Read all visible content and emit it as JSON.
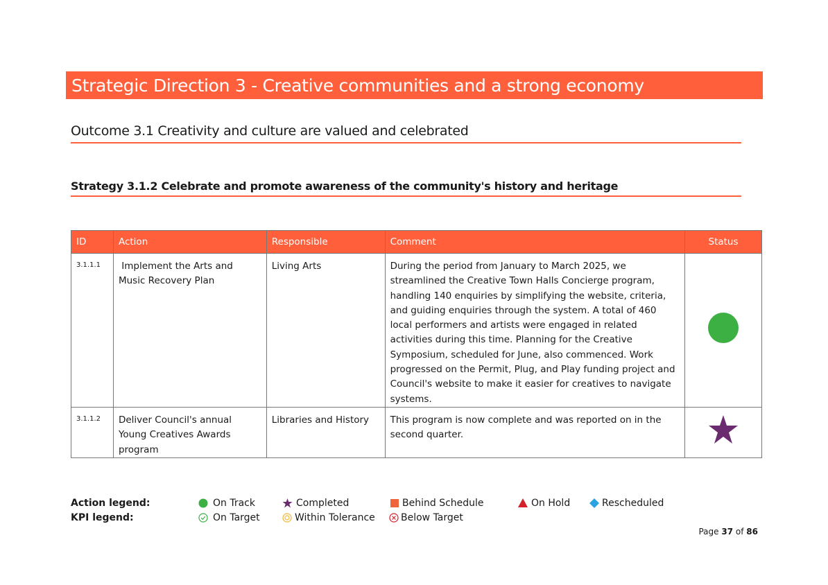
{
  "header": {
    "title": "Strategic Direction 3 - Creative communities and a strong economy"
  },
  "outcome": {
    "title": "Outcome 3.1 Creativity and culture are valued and celebrated"
  },
  "strategy": {
    "title": "Strategy 3.1.2 Celebrate and promote awareness of the community's history and heritage"
  },
  "table": {
    "columns": [
      "ID",
      "Action",
      "Responsible",
      "Comment",
      "Status"
    ],
    "rows": [
      [
        "3.1.1.1",
        " Implement the Arts and Music Recovery Plan",
        "Living Arts",
        "During the period from January to March 2025, we streamlined the Creative Town Halls Concierge program, handling 140 enquiries by simplifying the website, criteria, and guiding enquiries through the system. A total of 460 local performers and artists were engaged in related activities during this time. Planning for the Creative Symposium, scheduled for June, also commenced. Work progressed on the Permit, Plug, and Play funding project and Council's website to make it easier for creatives to navigate systems."
      ],
      [
        "3.1.1.2",
        "Deliver Council's annual Young Creatives Awards program",
        "Libraries and History",
        "This program is now complete and was reported on in the second quarter."
      ]
    ]
  },
  "legend": {
    "action_label": "Action legend:",
    "action_items": [
      "On Track",
      "Completed",
      "Behind Schedule",
      "On Hold",
      "Rescheduled"
    ],
    "kpi_label": "KPI legend:",
    "kpi_items": [
      "On Target",
      "Within Tolerance",
      "Below Target"
    ]
  },
  "footer": {
    "page_word": "Page",
    "current": "37",
    "of_word": "of",
    "total": "86"
  }
}
